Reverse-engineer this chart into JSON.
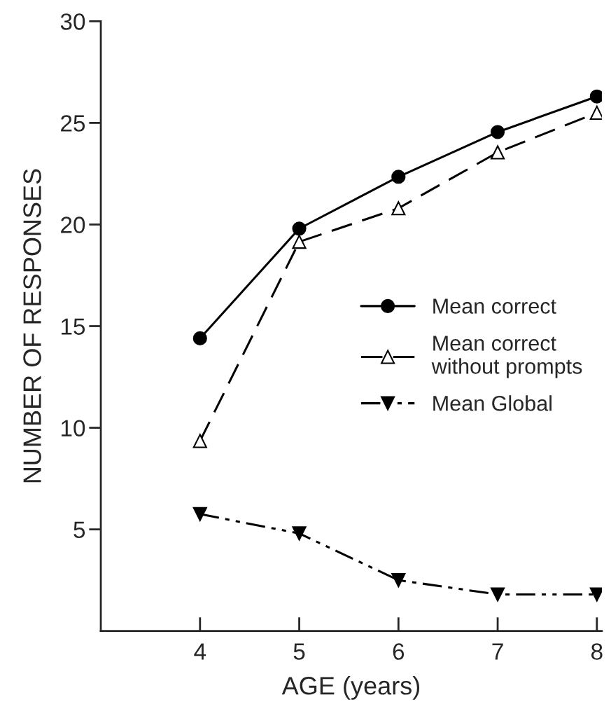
{
  "chart_data": {
    "type": "line",
    "xlabel": "AGE (years)",
    "ylabel": "NUMBER OF RESPONSES",
    "x": [
      4,
      5,
      6,
      7,
      8
    ],
    "series": [
      {
        "name": "Mean correct",
        "color": "#000000",
        "values": [
          14.4,
          19.8,
          22.35,
          24.55,
          26.3
        ],
        "marker": "circle",
        "line_style": "solid"
      },
      {
        "name": "Mean correct\nwithout prompts",
        "color": "#000000",
        "values": [
          9.35,
          19.15,
          20.8,
          23.55,
          25.5
        ],
        "marker": "triangle_open",
        "line_style": "dashed"
      },
      {
        "name": "Mean Global",
        "color": "#000000",
        "values": [
          5.75,
          4.8,
          2.5,
          1.8,
          1.8
        ],
        "marker": "triangle_down",
        "line_style": "dashdotdot"
      }
    ],
    "xlim": [
      3,
      8.05
    ],
    "ylim": [
      0,
      30
    ],
    "xticks": [
      4,
      5,
      6,
      7,
      8
    ],
    "yticks": [
      5,
      10,
      15,
      20,
      25,
      30
    ],
    "grid": false,
    "legend": "right"
  }
}
